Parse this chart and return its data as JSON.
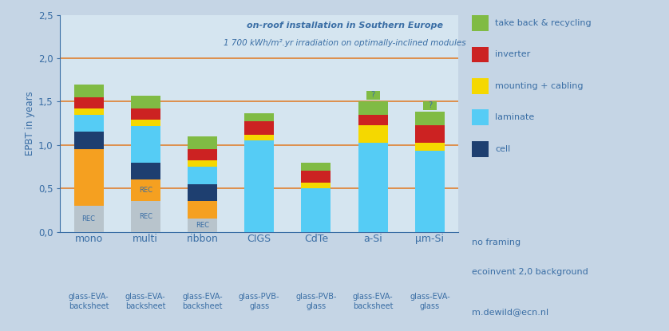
{
  "categories": [
    "mono",
    "multi",
    "ribbon",
    "CIGS",
    "CdTe",
    "a-Si",
    "μm-Si"
  ],
  "subtitles": [
    "glass-EVA-\nbacksheet",
    "glass-EVA-\nbacksheet",
    "glass-EVA-\nbacksheet",
    "glass-PVB-\nglass",
    "glass-PVB-\nglass",
    "glass-EVA-\nbacksheet",
    "glass-EVA-\nglass"
  ],
  "segs_rec_gray": [
    0.3,
    0.35,
    0.15,
    0.0,
    0.0,
    0.0,
    0.0
  ],
  "segs_orange": [
    0.65,
    0.25,
    0.2,
    0.0,
    0.0,
    0.0,
    0.0
  ],
  "segs_cell": [
    0.2,
    0.2,
    0.2,
    0.0,
    0.0,
    0.0,
    0.0
  ],
  "segs_laminate": [
    0.2,
    0.42,
    0.2,
    1.05,
    0.5,
    1.03,
    0.93
  ],
  "segs_mounting": [
    0.07,
    0.07,
    0.07,
    0.07,
    0.07,
    0.2,
    0.1
  ],
  "segs_inverter": [
    0.13,
    0.13,
    0.13,
    0.15,
    0.13,
    0.12,
    0.2
  ],
  "segs_recycling": [
    0.15,
    0.15,
    0.15,
    0.1,
    0.1,
    0.15,
    0.15
  ],
  "color_rec": "#b8c4cc",
  "color_orange": "#f5a020",
  "color_cell": "#1e3f70",
  "color_laminate": "#55ccf5",
  "color_mounting": "#f5d800",
  "color_inverter": "#cc2222",
  "color_recycling": "#80bb44",
  "legend_colors": [
    "#80bb44",
    "#cc2222",
    "#f5d800",
    "#55ccf5",
    "#1e3f70"
  ],
  "legend_labels": [
    "take back & recycling",
    "inverter",
    "mounting + cabling",
    "laminate",
    "cell"
  ],
  "annotation1": "on-roof installation in Southern Europe",
  "annotation2": "1 700 kWh/m².yr irradiation on optimally-inclined modules",
  "ylabel": "EPBT in years",
  "ylim": [
    0.0,
    2.5
  ],
  "yticks": [
    0.0,
    0.5,
    1.0,
    1.5,
    2.0,
    2.5
  ],
  "ytick_labels": [
    "0,0",
    "0,5",
    "1,0",
    "1,5",
    "2,0",
    "2,5"
  ],
  "hline_color": "#e07820",
  "hlines": [
    0.5,
    1.0,
    1.5,
    2.0
  ],
  "bg_color": "#c5d5e5",
  "plot_bg_color": "#d5e5f0",
  "text_color": "#3a6ea5",
  "note1": "no framing",
  "note2": "ecoinvent 2,0 background",
  "note3": "m.dewild@ecn.nl",
  "bar_width": 0.52
}
